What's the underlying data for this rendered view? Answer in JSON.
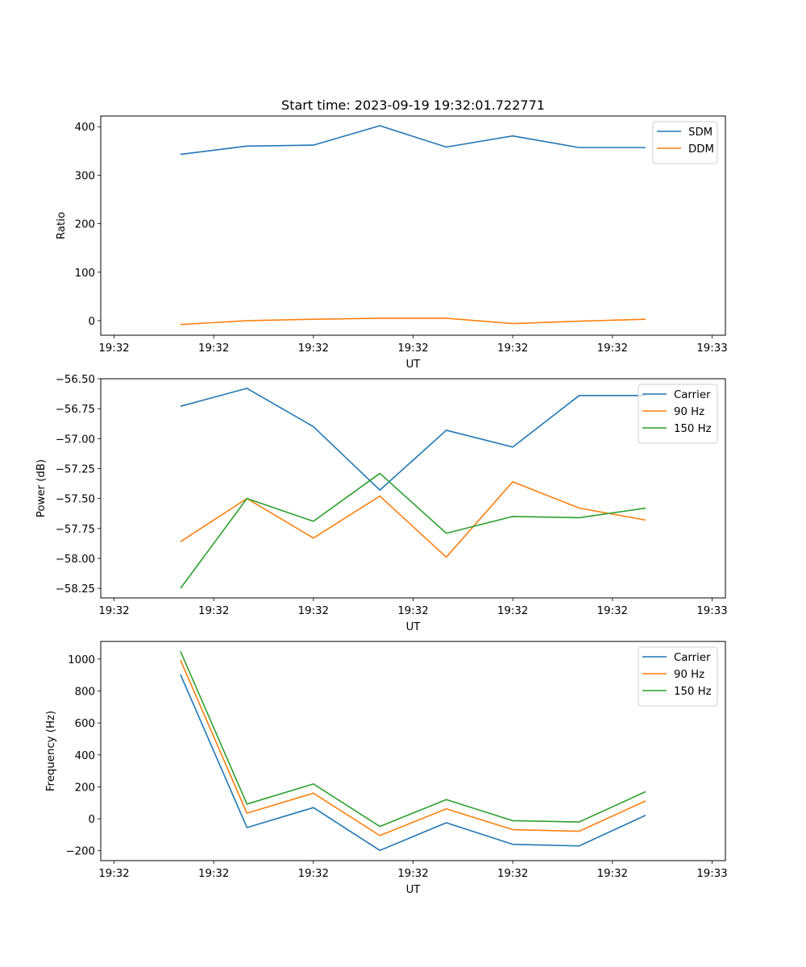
{
  "chart_data": [
    {
      "type": "line",
      "title": "Start time: 2023-09-19 19:32:01.722771",
      "xlabel": "UT",
      "ylabel": "Ratio",
      "x_index": [
        1,
        2,
        3,
        4,
        5,
        6,
        7,
        8
      ],
      "x_tick_labels": [
        "19:32",
        "19:32",
        "19:32",
        "19:32",
        "19:32",
        "19:32",
        "19:33"
      ],
      "xlim": [
        -0.2,
        9.2
      ],
      "ylim": [
        -30,
        422
      ],
      "y_ticks": [
        0,
        100,
        200,
        300,
        400
      ],
      "y_tick_labels": [
        "0",
        "100",
        "200",
        "300",
        "400"
      ],
      "legend_position": "top-right",
      "series": [
        {
          "name": "SDM",
          "color": "#1f77b4",
          "values": [
            343,
            360,
            362,
            402,
            358,
            381,
            357,
            357
          ]
        },
        {
          "name": "DDM",
          "color": "#ff7f0e",
          "values": [
            -8,
            0,
            3,
            5,
            5,
            -6,
            -1,
            3
          ]
        }
      ]
    },
    {
      "type": "line",
      "title": "",
      "xlabel": "UT",
      "ylabel": "Power (dB)",
      "x_index": [
        1,
        2,
        3,
        4,
        5,
        6,
        7,
        8
      ],
      "x_tick_labels": [
        "19:32",
        "19:32",
        "19:32",
        "19:32",
        "19:32",
        "19:32",
        "19:33"
      ],
      "xlim": [
        -0.2,
        9.2
      ],
      "ylim": [
        -58.33,
        -56.5
      ],
      "y_ticks": [
        -56.5,
        -56.75,
        -57.0,
        -57.25,
        -57.5,
        -57.75,
        -58.0,
        -58.25
      ],
      "y_tick_labels": [
        "−56.50",
        "−56.75",
        "−57.00",
        "−57.25",
        "−57.50",
        "−57.75",
        "−58.00",
        "−58.25"
      ],
      "legend_position": "top-right",
      "series": [
        {
          "name": "Carrier",
          "color": "#1f77b4",
          "values": [
            -56.73,
            -56.58,
            -56.9,
            -57.43,
            -56.93,
            -57.07,
            -56.64,
            -56.64
          ]
        },
        {
          "name": "90 Hz",
          "color": "#ff7f0e",
          "values": [
            -57.86,
            -57.5,
            -57.83,
            -57.48,
            -57.99,
            -57.36,
            -57.58,
            -57.68
          ]
        },
        {
          "name": "150 Hz",
          "color": "#2ca02c",
          "values": [
            -58.25,
            -57.5,
            -57.69,
            -57.29,
            -57.79,
            -57.65,
            -57.66,
            -57.58
          ]
        }
      ]
    },
    {
      "type": "line",
      "title": "",
      "xlabel": "UT",
      "ylabel": "Frequency (Hz)",
      "x_index": [
        1,
        2,
        3,
        4,
        5,
        6,
        7,
        8
      ],
      "x_tick_labels": [
        "19:32",
        "19:32",
        "19:32",
        "19:32",
        "19:32",
        "19:32",
        "19:33"
      ],
      "xlim": [
        -0.2,
        9.2
      ],
      "ylim": [
        -262,
        1110
      ],
      "y_ticks": [
        -200,
        0,
        200,
        400,
        600,
        800,
        1000
      ],
      "y_tick_labels": [
        "−200",
        "0",
        "200",
        "400",
        "600",
        "800",
        "1000"
      ],
      "legend_position": "top-right",
      "series": [
        {
          "name": "Carrier",
          "color": "#1f77b4",
          "values": [
            903,
            -55,
            70,
            -198,
            -25,
            -160,
            -170,
            22
          ]
        },
        {
          "name": "90 Hz",
          "color": "#ff7f0e",
          "values": [
            993,
            35,
            160,
            -105,
            62,
            -68,
            -78,
            112
          ]
        },
        {
          "name": "150 Hz",
          "color": "#2ca02c",
          "values": [
            1048,
            92,
            218,
            -48,
            120,
            -12,
            -20,
            170
          ]
        }
      ]
    }
  ]
}
